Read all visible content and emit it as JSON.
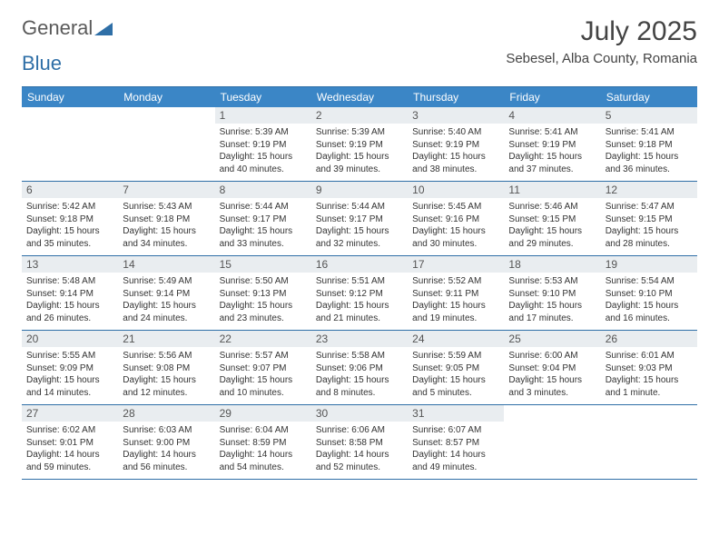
{
  "logo": {
    "word1": "General",
    "word2": "Blue"
  },
  "title": "July 2025",
  "location": "Sebesel, Alba County, Romania",
  "colors": {
    "header_bar": "#3b86c6",
    "rule": "#2f6fa7",
    "daynum_bg": "#e9edf0",
    "text": "#333333",
    "title_text": "#444444"
  },
  "dow": [
    "Sunday",
    "Monday",
    "Tuesday",
    "Wednesday",
    "Thursday",
    "Friday",
    "Saturday"
  ],
  "weeks": [
    [
      {
        "n": "",
        "sr": "",
        "ss": "",
        "dl": ""
      },
      {
        "n": "",
        "sr": "",
        "ss": "",
        "dl": ""
      },
      {
        "n": "1",
        "sr": "Sunrise: 5:39 AM",
        "ss": "Sunset: 9:19 PM",
        "dl": "Daylight: 15 hours and 40 minutes."
      },
      {
        "n": "2",
        "sr": "Sunrise: 5:39 AM",
        "ss": "Sunset: 9:19 PM",
        "dl": "Daylight: 15 hours and 39 minutes."
      },
      {
        "n": "3",
        "sr": "Sunrise: 5:40 AM",
        "ss": "Sunset: 9:19 PM",
        "dl": "Daylight: 15 hours and 38 minutes."
      },
      {
        "n": "4",
        "sr": "Sunrise: 5:41 AM",
        "ss": "Sunset: 9:19 PM",
        "dl": "Daylight: 15 hours and 37 minutes."
      },
      {
        "n": "5",
        "sr": "Sunrise: 5:41 AM",
        "ss": "Sunset: 9:18 PM",
        "dl": "Daylight: 15 hours and 36 minutes."
      }
    ],
    [
      {
        "n": "6",
        "sr": "Sunrise: 5:42 AM",
        "ss": "Sunset: 9:18 PM",
        "dl": "Daylight: 15 hours and 35 minutes."
      },
      {
        "n": "7",
        "sr": "Sunrise: 5:43 AM",
        "ss": "Sunset: 9:18 PM",
        "dl": "Daylight: 15 hours and 34 minutes."
      },
      {
        "n": "8",
        "sr": "Sunrise: 5:44 AM",
        "ss": "Sunset: 9:17 PM",
        "dl": "Daylight: 15 hours and 33 minutes."
      },
      {
        "n": "9",
        "sr": "Sunrise: 5:44 AM",
        "ss": "Sunset: 9:17 PM",
        "dl": "Daylight: 15 hours and 32 minutes."
      },
      {
        "n": "10",
        "sr": "Sunrise: 5:45 AM",
        "ss": "Sunset: 9:16 PM",
        "dl": "Daylight: 15 hours and 30 minutes."
      },
      {
        "n": "11",
        "sr": "Sunrise: 5:46 AM",
        "ss": "Sunset: 9:15 PM",
        "dl": "Daylight: 15 hours and 29 minutes."
      },
      {
        "n": "12",
        "sr": "Sunrise: 5:47 AM",
        "ss": "Sunset: 9:15 PM",
        "dl": "Daylight: 15 hours and 28 minutes."
      }
    ],
    [
      {
        "n": "13",
        "sr": "Sunrise: 5:48 AM",
        "ss": "Sunset: 9:14 PM",
        "dl": "Daylight: 15 hours and 26 minutes."
      },
      {
        "n": "14",
        "sr": "Sunrise: 5:49 AM",
        "ss": "Sunset: 9:14 PM",
        "dl": "Daylight: 15 hours and 24 minutes."
      },
      {
        "n": "15",
        "sr": "Sunrise: 5:50 AM",
        "ss": "Sunset: 9:13 PM",
        "dl": "Daylight: 15 hours and 23 minutes."
      },
      {
        "n": "16",
        "sr": "Sunrise: 5:51 AM",
        "ss": "Sunset: 9:12 PM",
        "dl": "Daylight: 15 hours and 21 minutes."
      },
      {
        "n": "17",
        "sr": "Sunrise: 5:52 AM",
        "ss": "Sunset: 9:11 PM",
        "dl": "Daylight: 15 hours and 19 minutes."
      },
      {
        "n": "18",
        "sr": "Sunrise: 5:53 AM",
        "ss": "Sunset: 9:10 PM",
        "dl": "Daylight: 15 hours and 17 minutes."
      },
      {
        "n": "19",
        "sr": "Sunrise: 5:54 AM",
        "ss": "Sunset: 9:10 PM",
        "dl": "Daylight: 15 hours and 16 minutes."
      }
    ],
    [
      {
        "n": "20",
        "sr": "Sunrise: 5:55 AM",
        "ss": "Sunset: 9:09 PM",
        "dl": "Daylight: 15 hours and 14 minutes."
      },
      {
        "n": "21",
        "sr": "Sunrise: 5:56 AM",
        "ss": "Sunset: 9:08 PM",
        "dl": "Daylight: 15 hours and 12 minutes."
      },
      {
        "n": "22",
        "sr": "Sunrise: 5:57 AM",
        "ss": "Sunset: 9:07 PM",
        "dl": "Daylight: 15 hours and 10 minutes."
      },
      {
        "n": "23",
        "sr": "Sunrise: 5:58 AM",
        "ss": "Sunset: 9:06 PM",
        "dl": "Daylight: 15 hours and 8 minutes."
      },
      {
        "n": "24",
        "sr": "Sunrise: 5:59 AM",
        "ss": "Sunset: 9:05 PM",
        "dl": "Daylight: 15 hours and 5 minutes."
      },
      {
        "n": "25",
        "sr": "Sunrise: 6:00 AM",
        "ss": "Sunset: 9:04 PM",
        "dl": "Daylight: 15 hours and 3 minutes."
      },
      {
        "n": "26",
        "sr": "Sunrise: 6:01 AM",
        "ss": "Sunset: 9:03 PM",
        "dl": "Daylight: 15 hours and 1 minute."
      }
    ],
    [
      {
        "n": "27",
        "sr": "Sunrise: 6:02 AM",
        "ss": "Sunset: 9:01 PM",
        "dl": "Daylight: 14 hours and 59 minutes."
      },
      {
        "n": "28",
        "sr": "Sunrise: 6:03 AM",
        "ss": "Sunset: 9:00 PM",
        "dl": "Daylight: 14 hours and 56 minutes."
      },
      {
        "n": "29",
        "sr": "Sunrise: 6:04 AM",
        "ss": "Sunset: 8:59 PM",
        "dl": "Daylight: 14 hours and 54 minutes."
      },
      {
        "n": "30",
        "sr": "Sunrise: 6:06 AM",
        "ss": "Sunset: 8:58 PM",
        "dl": "Daylight: 14 hours and 52 minutes."
      },
      {
        "n": "31",
        "sr": "Sunrise: 6:07 AM",
        "ss": "Sunset: 8:57 PM",
        "dl": "Daylight: 14 hours and 49 minutes."
      },
      {
        "n": "",
        "sr": "",
        "ss": "",
        "dl": ""
      },
      {
        "n": "",
        "sr": "",
        "ss": "",
        "dl": ""
      }
    ]
  ]
}
